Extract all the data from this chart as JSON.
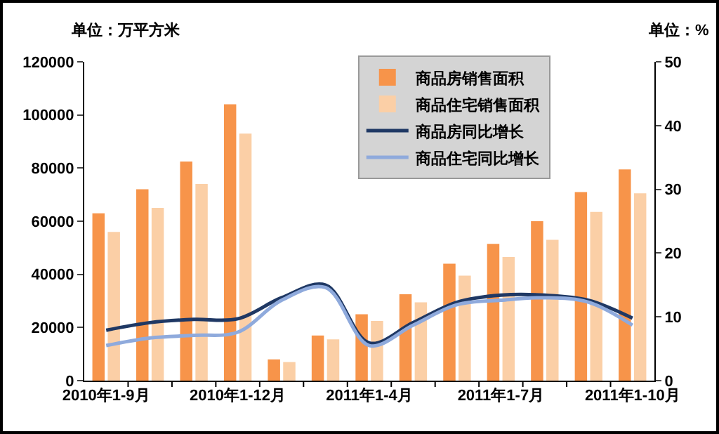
{
  "chart_data": {
    "type": "bar",
    "ylabel": "单位：万平方米",
    "y2label": "单位：%",
    "categories": [
      "2010年1-9月",
      null,
      null,
      "2010年1-12月",
      null,
      null,
      "2011年1-4月",
      null,
      null,
      "2011年1-7月",
      null,
      null,
      "2011年1-10月"
    ],
    "series": [
      {
        "name": "商品房销售面积",
        "color": "#f7944a",
        "values": [
          63000,
          72000,
          82500,
          104000,
          8000,
          17000,
          25000,
          32500,
          44000,
          51500,
          60000,
          71000,
          79500
        ]
      },
      {
        "name": "商品住宅销售面积",
        "color": "#fbcfa6",
        "values": [
          56000,
          65000,
          74000,
          93000,
          7000,
          15500,
          22500,
          29500,
          39500,
          46500,
          53000,
          63500,
          70500
        ]
      },
      {
        "name": "商品房同比增长",
        "type": "line",
        "axis": "y2",
        "color": "#1f3864",
        "values": [
          7.9,
          9.1,
          9.6,
          9.7,
          13,
          15,
          5.9,
          9.1,
          12.3,
          13.4,
          13.4,
          12.6,
          9.8
        ]
      },
      {
        "name": "商品住宅同比增长",
        "type": "line",
        "axis": "y2",
        "color": "#8faadc",
        "values": [
          5.5,
          6.7,
          7.1,
          7.6,
          12.6,
          14.6,
          5.5,
          8.7,
          11.9,
          12.6,
          13,
          12.3,
          8.7
        ]
      }
    ],
    "ylim": [
      0,
      120000
    ],
    "yticks": [
      0,
      20000,
      40000,
      60000,
      80000,
      100000,
      120000
    ],
    "y2lim": [
      0,
      50
    ],
    "y2ticks": [
      0,
      10,
      20,
      30,
      40,
      50
    ],
    "legend": "top",
    "marker": "none"
  }
}
